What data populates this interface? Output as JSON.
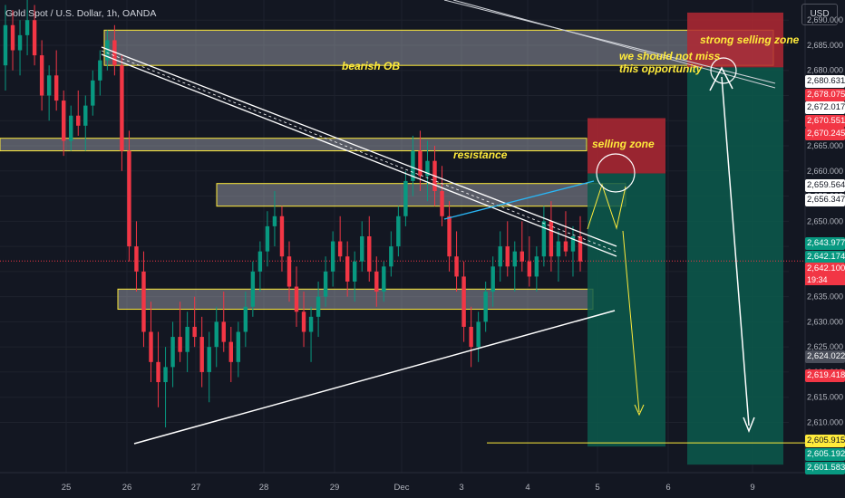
{
  "header": {
    "symbol": "Gold Spot / U.S. Dollar, 1h, OANDA",
    "currency": "USD"
  },
  "colors": {
    "background": "#131722",
    "bull": "#089981",
    "bear": "#f23645",
    "zone_yellow": "#ffeb3b",
    "selling_zone_fill": "#b22833",
    "target_fill": "#0c5a4c"
  },
  "chart_data": {
    "type": "candlestick",
    "timeframe": "1h",
    "x_ticks": [
      "25",
      "26",
      "27",
      "28",
      "29",
      "Dec",
      "3",
      "4",
      "5",
      "6",
      "9"
    ],
    "y_ticks": [
      2690,
      2685,
      2680,
      2675,
      2670,
      2665,
      2660,
      2655,
      2650,
      2645,
      2640,
      2635,
      2630,
      2625,
      2620,
      2615,
      2610
    ],
    "ylim": [
      2600,
      2694
    ],
    "current_price": 2642.1,
    "countdown": "19:34",
    "price_tags": [
      {
        "value": "2,680.631",
        "style": "white",
        "price": 2680.631
      },
      {
        "value": "2,678.075",
        "style": "red",
        "price": 2678.075
      },
      {
        "value": "2,672.017",
        "style": "white",
        "price": 2672.017
      },
      {
        "value": "2,670.551",
        "style": "red",
        "price": 2670.551
      },
      {
        "value": "2,670.245",
        "style": "red",
        "price": 2670.245
      },
      {
        "value": "2,659.564",
        "style": "white",
        "price": 2659.564
      },
      {
        "value": "2,656.347",
        "style": "white",
        "price": 2656.347
      },
      {
        "value": "2,643.977",
        "style": "green",
        "price": 2643.977
      },
      {
        "value": "2,642.174",
        "style": "green",
        "price": 2642.174
      },
      {
        "value": "2,642.100",
        "style": "red",
        "price": 2642.1
      },
      {
        "value": "2,624.022",
        "style": "grey",
        "price": 2624.022
      },
      {
        "value": "2,619.418",
        "style": "red",
        "price": 2619.418
      },
      {
        "value": "2,605.915",
        "style": "yellow",
        "price": 2605.915
      },
      {
        "value": "2,605.192",
        "style": "green",
        "price": 2605.192
      },
      {
        "value": "2,601.583",
        "style": "green",
        "price": 2601.583
      }
    ],
    "zones": [
      {
        "label": "bearish OB",
        "from": 2681,
        "to": 2688
      },
      {
        "label": "resistance",
        "from": 2664,
        "to": 2666.5
      },
      {
        "label": "",
        "from": 2653,
        "to": 2657.5
      },
      {
        "label": "",
        "from": 2632.5,
        "to": 2636.5
      }
    ],
    "annotations": {
      "bearish_ob": "bearish OB",
      "resistance": "resistance",
      "selling_zone": "selling zone",
      "strong_selling_zone": "strong selling zone",
      "opportunity_line1": "we should not miss",
      "opportunity_line2": "this opportunity"
    },
    "targets": [
      2606.5,
      2605.915
    ],
    "candles": [
      [
        2681,
        2693,
        2676,
        2689
      ],
      [
        2689,
        2692,
        2680,
        2684
      ],
      [
        2684,
        2690,
        2679,
        2687
      ],
      [
        2687,
        2694,
        2683,
        2690
      ],
      [
        2690,
        2693,
        2681,
        2683
      ],
      [
        2683,
        2686,
        2672,
        2675
      ],
      [
        2675,
        2681,
        2670,
        2679
      ],
      [
        2679,
        2684,
        2672,
        2674
      ],
      [
        2674,
        2676,
        2663,
        2666
      ],
      [
        2666,
        2673,
        2664,
        2671
      ],
      [
        2671,
        2676,
        2667,
        2669
      ],
      [
        2669,
        2675,
        2664,
        2673
      ],
      [
        2673,
        2680,
        2671,
        2678
      ],
      [
        2678,
        2684,
        2675,
        2682
      ],
      [
        2682,
        2688,
        2680,
        2686
      ],
      [
        2686,
        2689,
        2679,
        2681
      ],
      [
        2681,
        2683,
        2660,
        2664
      ],
      [
        2664,
        2668,
        2642,
        2645
      ],
      [
        2645,
        2650,
        2636,
        2640
      ],
      [
        2640,
        2644,
        2625,
        2628
      ],
      [
        2628,
        2634,
        2618,
        2622
      ],
      [
        2622,
        2628,
        2613,
        2618
      ],
      [
        2618,
        2625,
        2609,
        2621
      ],
      [
        2621,
        2630,
        2617,
        2627
      ],
      [
        2627,
        2634,
        2622,
        2624
      ],
      [
        2624,
        2632,
        2620,
        2629
      ],
      [
        2629,
        2635,
        2625,
        2627
      ],
      [
        2627,
        2631,
        2617,
        2620
      ],
      [
        2620,
        2628,
        2614,
        2625
      ],
      [
        2625,
        2633,
        2621,
        2630
      ],
      [
        2630,
        2636,
        2624,
        2626
      ],
      [
        2626,
        2629,
        2618,
        2622
      ],
      [
        2622,
        2630,
        2619,
        2628
      ],
      [
        2628,
        2636,
        2625,
        2633
      ],
      [
        2633,
        2642,
        2631,
        2640
      ],
      [
        2640,
        2646,
        2636,
        2644
      ],
      [
        2644,
        2652,
        2641,
        2649
      ],
      [
        2649,
        2656,
        2645,
        2651
      ],
      [
        2651,
        2653,
        2640,
        2643
      ],
      [
        2643,
        2646,
        2634,
        2637
      ],
      [
        2637,
        2641,
        2629,
        2632
      ],
      [
        2632,
        2636,
        2625,
        2628
      ],
      [
        2628,
        2633,
        2622,
        2631
      ],
      [
        2631,
        2638,
        2627,
        2635
      ],
      [
        2635,
        2643,
        2633,
        2640
      ],
      [
        2640,
        2648,
        2637,
        2646
      ],
      [
        2646,
        2651,
        2642,
        2643
      ],
      [
        2643,
        2646,
        2635,
        2638
      ],
      [
        2638,
        2644,
        2634,
        2642
      ],
      [
        2642,
        2650,
        2640,
        2647
      ],
      [
        2647,
        2651,
        2638,
        2640
      ],
      [
        2640,
        2643,
        2633,
        2636
      ],
      [
        2636,
        2642,
        2634,
        2641
      ],
      [
        2641,
        2648,
        2639,
        2645
      ],
      [
        2645,
        2653,
        2643,
        2651
      ],
      [
        2651,
        2660,
        2649,
        2658
      ],
      [
        2658,
        2667,
        2655,
        2664
      ],
      [
        2664,
        2668,
        2656,
        2659
      ],
      [
        2659,
        2666,
        2654,
        2662
      ],
      [
        2662,
        2665,
        2653,
        2656
      ],
      [
        2656,
        2661,
        2649,
        2651
      ],
      [
        2651,
        2654,
        2640,
        2643
      ],
      [
        2643,
        2648,
        2636,
        2639
      ],
      [
        2639,
        2642,
        2626,
        2629
      ],
      [
        2629,
        2633,
        2621,
        2625
      ],
      [
        2625,
        2632,
        2622,
        2630
      ],
      [
        2630,
        2638,
        2628,
        2636
      ],
      [
        2636,
        2643,
        2633,
        2641
      ],
      [
        2641,
        2648,
        2638,
        2645
      ],
      [
        2645,
        2650,
        2639,
        2641
      ],
      [
        2641,
        2646,
        2636,
        2644
      ],
      [
        2644,
        2650,
        2640,
        2642
      ],
      [
        2642,
        2647,
        2637,
        2639
      ],
      [
        2639,
        2645,
        2636,
        2643
      ],
      [
        2643,
        2653,
        2641,
        2650
      ],
      [
        2650,
        2654,
        2640,
        2643
      ],
      [
        2643,
        2648,
        2638,
        2646
      ],
      [
        2646,
        2652,
        2643,
        2644
      ],
      [
        2644,
        2649,
        2639,
        2647
      ],
      [
        2647,
        2651,
        2640,
        2642
      ]
    ]
  }
}
